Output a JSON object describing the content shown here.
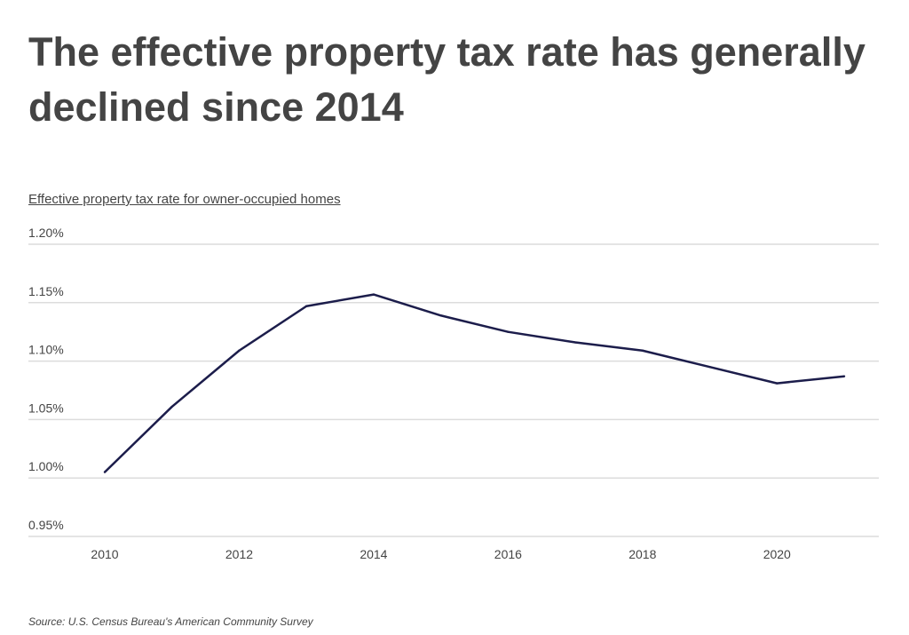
{
  "chart_data": {
    "type": "line",
    "title": "The effective property tax rate has generally declined since 2014",
    "ylabel": "Effective property tax rate for owner-occupied homes",
    "source": "Source: U.S. Census Bureau's American Community Survey",
    "x": [
      2010,
      2011,
      2012,
      2013,
      2014,
      2015,
      2016,
      2017,
      2018,
      2019,
      2020,
      2021
    ],
    "values": [
      1.005,
      1.061,
      1.109,
      1.147,
      1.157,
      1.139,
      1.125,
      1.116,
      1.109,
      1.095,
      1.081,
      1.087
    ],
    "ylim": [
      0.95,
      1.2
    ],
    "yticks": [
      "0.95%",
      "1.00%",
      "1.05%",
      "1.10%",
      "1.15%",
      "1.20%"
    ],
    "xticks": [
      "2010",
      "2012",
      "2014",
      "2016",
      "2018",
      "2020"
    ],
    "grid": true,
    "line_color": "#1c1d4b"
  }
}
